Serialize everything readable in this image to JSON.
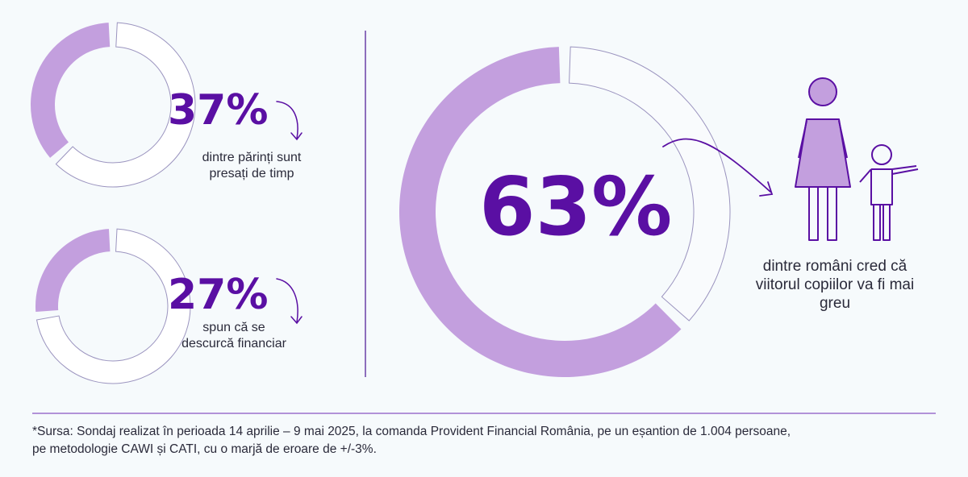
{
  "chart_data": [
    {
      "type": "pie",
      "style": "donut",
      "value_label": "37%",
      "values": [
        37,
        63
      ],
      "caption": "dintre părinți sunt presați de timp",
      "colors": [
        "#c39fde",
        "#ffffff"
      ]
    },
    {
      "type": "pie",
      "style": "donut",
      "value_label": "27%",
      "values": [
        27,
        73
      ],
      "caption": "spun că se descurcă financiar",
      "colors": [
        "#c39fde",
        "#ffffff"
      ]
    },
    {
      "type": "pie",
      "style": "donut",
      "value_label": "63%",
      "values": [
        63,
        37
      ],
      "caption": "dintre români cred că viitorul copiilor va fi mai greu",
      "colors": [
        "#c39fde",
        "#ffffff"
      ]
    }
  ],
  "footnote_line1": "*Sursa: Sondaj realizat în perioada 14 aprilie – 9 mai 2025, la comanda Provident Financial România, pe un eșantion de 1.004 persoane,",
  "footnote_line2": "pe metodologie CAWI și CATI, cu o marjă de eroare de +/-3%.",
  "colors": {
    "accent_fill": "#c39fde",
    "accent_dark": "#5a0fa3",
    "outline": "#9b94bf",
    "background": "#f6fafc"
  },
  "icons": [
    "parent-child-icon",
    "curved-arrow-icon"
  ]
}
